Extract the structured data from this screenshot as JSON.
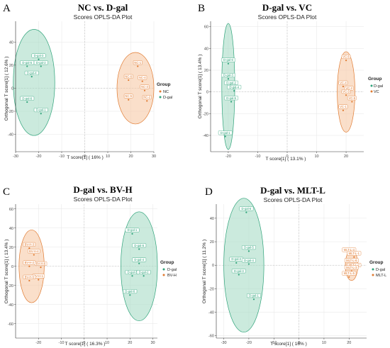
{
  "colors": {
    "orange": "#E07A30",
    "green": "#2FA37A",
    "orange_fill": "#F6C9A6",
    "green_fill": "#A9DCC7"
  },
  "chart_data": [
    {
      "type": "scatter",
      "letter": "A",
      "title": "NC vs. D-gal",
      "subtitle": "Scores OPLS-DA Plot",
      "xlabel": "T score[1] ( 16% )",
      "ylabel": "Orthogonal T score[1] ( 12.6% )",
      "xlim": [
        -30,
        30
      ],
      "ylim": [
        -55,
        58
      ],
      "xticks": [
        -30,
        -20,
        -10,
        0,
        10,
        20,
        30
      ],
      "yticks": [
        -40,
        -20,
        0,
        20,
        40
      ],
      "legend_title": "Group",
      "series": [
        {
          "name": "NC",
          "color": "orange",
          "ellipse": {
            "cx": 22,
            "cy": 0,
            "rx": 8,
            "ry": 31
          },
          "points": [
            {
              "label": "NC-1",
              "x": 23,
              "y": 19
            },
            {
              "label": "NC-6",
              "x": 19,
              "y": 7
            },
            {
              "label": "NC-4",
              "x": 25,
              "y": 6
            },
            {
              "label": "NC-3",
              "x": 26,
              "y": -2
            },
            {
              "label": "NC-5",
              "x": 19,
              "y": -10
            },
            {
              "label": "NC-2",
              "x": 27,
              "y": -11
            }
          ]
        },
        {
          "name": "D-gal",
          "color": "green",
          "ellipse": {
            "cx": -22,
            "cy": 5,
            "rx": 9,
            "ry": 46
          },
          "points": [
            {
              "label": "D-gal-3",
              "x": -20,
              "y": 25
            },
            {
              "label": "D-gal-5",
              "x": -25,
              "y": 19
            },
            {
              "label": "D-gal-2",
              "x": -19,
              "y": 19
            },
            {
              "label": "D-gal-4",
              "x": -23,
              "y": 10
            },
            {
              "label": "D-gal-6",
              "x": -25,
              "y": -12
            },
            {
              "label": "D-gal-1",
              "x": -19,
              "y": -22
            }
          ]
        }
      ]
    },
    {
      "type": "scatter",
      "letter": "B",
      "title": "D-gal vs. VC",
      "subtitle": "Scores OPLS-DA Plot",
      "xlabel": "T score[1] ( 13.1% )",
      "ylabel": "Orthogonal T score[1] ( 13.4% )",
      "xlim": [
        -26,
        26
      ],
      "ylim": [
        -55,
        65
      ],
      "xticks": [
        -20,
        -10,
        0,
        10,
        20
      ],
      "yticks": [
        -40,
        -20,
        0,
        20,
        40,
        60
      ],
      "legend_title": "Group",
      "series": [
        {
          "name": "D-gal",
          "color": "green",
          "ellipse": {
            "cx": -20,
            "cy": 5,
            "rx": 2.2,
            "ry": 58
          },
          "points": [
            {
              "label": "D-gal-6",
              "x": -20,
              "y": 26
            },
            {
              "label": "D-gal-3",
              "x": -20,
              "y": 12
            },
            {
              "label": "D-gal-2",
              "x": -19,
              "y": 5
            },
            {
              "label": "D-gal-4",
              "x": -18,
              "y": 1
            },
            {
              "label": "D-gal-5",
              "x": -19,
              "y": -9
            },
            {
              "label": "D-gal-1",
              "x": -21,
              "y": -41
            }
          ]
        },
        {
          "name": "VC",
          "color": "orange",
          "ellipse": {
            "cx": 20,
            "cy": 0,
            "rx": 3,
            "ry": 37
          },
          "points": [
            {
              "label": "VC-6",
              "x": 20,
              "y": 29
            },
            {
              "label": "VC-4",
              "x": 19,
              "y": 5
            },
            {
              "label": "VC-2",
              "x": 21,
              "y": 0
            },
            {
              "label": "VC-3",
              "x": 20,
              "y": -3
            },
            {
              "label": "VC-5",
              "x": 22,
              "y": -9
            },
            {
              "label": "VC-1",
              "x": 19,
              "y": -17
            }
          ]
        }
      ]
    },
    {
      "type": "scatter",
      "letter": "C",
      "title": "D-gal vs. BV-H",
      "subtitle": "Scores OPLS-DA Plot",
      "xlabel": "T score[1] ( 16.3% )",
      "ylabel": "Orthogonal T score[1] ( 13.4% )",
      "xlim": [
        -30,
        32
      ],
      "ylim": [
        -75,
        65
      ],
      "xticks": [
        -20,
        -10,
        0,
        10,
        20,
        30
      ],
      "yticks": [
        -60,
        -40,
        -20,
        0,
        20,
        40,
        60
      ],
      "legend_title": "Group",
      "series": [
        {
          "name": "D-gal",
          "color": "green",
          "ellipse": {
            "cx": 24,
            "cy": 0,
            "rx": 8,
            "ry": 57
          },
          "points": [
            {
              "label": "D-gal-1",
              "x": 21,
              "y": 34
            },
            {
              "label": "D-gal-5",
              "x": 24,
              "y": 18
            },
            {
              "label": "D-gal-4",
              "x": 24,
              "y": 3
            },
            {
              "label": "D-gal-3",
              "x": 21,
              "y": -10
            },
            {
              "label": "D-gal-2",
              "x": 26,
              "y": -10
            },
            {
              "label": "D-gal-6",
              "x": 20,
              "y": -30
            }
          ]
        },
        {
          "name": "BV-H",
          "color": "orange",
          "ellipse": {
            "cx": -23,
            "cy": 0,
            "rx": 5.5,
            "ry": 38
          },
          "points": [
            {
              "label": "BV-H-3",
              "x": -24,
              "y": 19
            },
            {
              "label": "BV-H-4",
              "x": -22,
              "y": 12
            },
            {
              "label": "BV-H-6",
              "x": -19,
              "y": -1
            },
            {
              "label": "BV-H-2",
              "x": -24,
              "y": 0
            },
            {
              "label": "BV-H-1",
              "x": -20,
              "y": -14
            },
            {
              "label": "BV-H-5",
              "x": -24,
              "y": -15
            }
          ]
        }
      ]
    },
    {
      "type": "scatter",
      "letter": "D",
      "title": "D-gal vs. MLT-L",
      "subtitle": "Scores OPLS-DA Plot",
      "xlabel": "T score[1] ( 16% )",
      "ylabel": "Orthogonal T score[1] ( 11.2% )",
      "xlim": [
        -33,
        27
      ],
      "ylim": [
        -62,
        52
      ],
      "xticks": [
        -30,
        -20,
        -10,
        0,
        10,
        20
      ],
      "yticks": [
        -60,
        -40,
        -20,
        0,
        20,
        40
      ],
      "legend_title": "Group",
      "series": [
        {
          "name": "D-gal",
          "color": "green",
          "ellipse": {
            "cx": -22,
            "cy": 0,
            "rx": 8,
            "ry": 57
          },
          "points": [
            {
              "label": "D-gal-6",
              "x": -21,
              "y": 45
            },
            {
              "label": "D-gal-5",
              "x": -20,
              "y": 12
            },
            {
              "label": "D-gal-2",
              "x": -25,
              "y": 2
            },
            {
              "label": "D-gal-4",
              "x": -20,
              "y": 1
            },
            {
              "label": "D-gal-3",
              "x": -24,
              "y": -8
            },
            {
              "label": "D-gal-1",
              "x": -18,
              "y": -29
            }
          ]
        },
        {
          "name": "MLT-L",
          "color": "orange",
          "ellipse": {
            "cx": 21,
            "cy": 0,
            "rx": 2.5,
            "ry": 13
          },
          "points": [
            {
              "label": "MLT-L-4",
              "x": 20,
              "y": 10
            },
            {
              "label": "MLT-L-1",
              "x": 22,
              "y": 7
            },
            {
              "label": "MLT-L-6",
              "x": 21,
              "y": 1
            },
            {
              "label": "MLT-L-2",
              "x": 22,
              "y": -3
            },
            {
              "label": "MLT-L-3",
              "x": 21,
              "y": -5
            },
            {
              "label": "MLT-L-5",
              "x": 20,
              "y": -10
            }
          ]
        }
      ]
    }
  ]
}
